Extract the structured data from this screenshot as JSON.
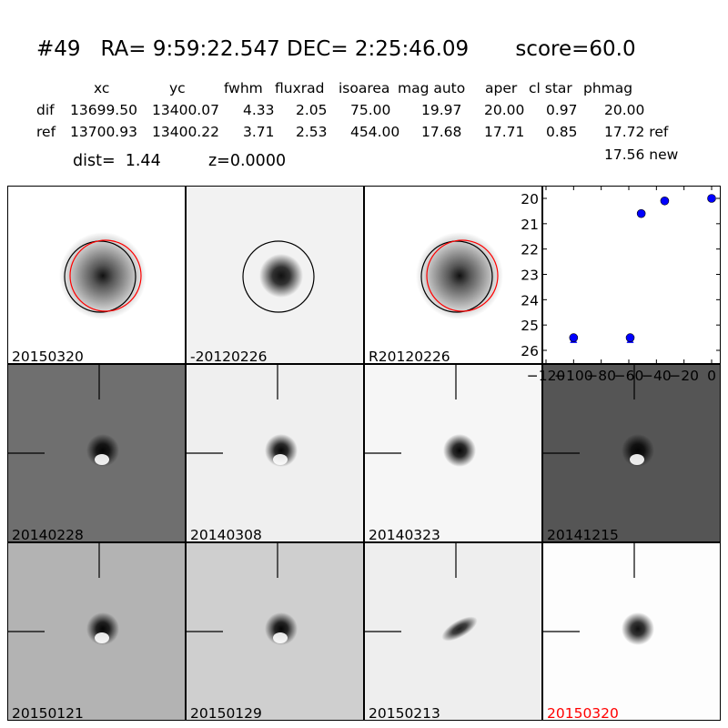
{
  "header": {
    "title": "#49   RA= 9:59:22.547 DEC= 2:25:46.09       score=60.0",
    "columns": [
      "xc",
      "yc",
      "fwhm",
      "fluxrad",
      "isoarea",
      "mag auto",
      "aper",
      "cl star",
      "phmag"
    ],
    "rows": [
      {
        "label": "dif",
        "values": [
          "13699.50",
          "13400.07",
          "4.33",
          "2.05",
          "75.00",
          "19.97",
          "20.00",
          "0.97",
          "20.00"
        ]
      },
      {
        "label": "ref",
        "values": [
          "13700.93",
          "13400.22",
          "3.71",
          "2.53",
          "454.00",
          "17.68",
          "17.71",
          "0.85",
          "17.72 ref"
        ]
      }
    ],
    "extra_phmag": "17.56 new",
    "dist": "dist=  1.44",
    "z": "z=0.0000"
  },
  "panels": [
    {
      "label": "20150320",
      "bg": "#ffffff",
      "blob": "#101010",
      "circles": true,
      "crosshair": false,
      "label_color": "#000000",
      "dipole": false
    },
    {
      "label": "-20120226",
      "bg": "#f2f2f2",
      "blob": "#101010",
      "circles": true,
      "crosshair": false,
      "label_color": "#000000",
      "dipole": false,
      "single_circle": true
    },
    {
      "label": "R20120226",
      "bg": "#ffffff",
      "blob": "#101010",
      "circles": true,
      "crosshair": false,
      "label_color": "#000000",
      "dipole": false
    },
    {
      "label": "20140228",
      "bg": "#6f6f6f",
      "blob": "#050505",
      "circles": false,
      "crosshair": true,
      "label_color": "#000000",
      "dipole": true
    },
    {
      "label": "20140308",
      "bg": "#efefef",
      "blob": "#050505",
      "circles": false,
      "crosshair": true,
      "label_color": "#000000",
      "dipole": true
    },
    {
      "label": "20140323",
      "bg": "#f6f6f6",
      "blob": "#050505",
      "circles": false,
      "crosshair": true,
      "label_color": "#000000",
      "dipole": false
    },
    {
      "label": "20141215",
      "bg": "#555555",
      "blob": "#050505",
      "circles": false,
      "crosshair": true,
      "label_color": "#000000",
      "dipole": true
    },
    {
      "label": "20150121",
      "bg": "#b3b3b3",
      "blob": "#050505",
      "circles": false,
      "crosshair": true,
      "label_color": "#000000",
      "dipole": true
    },
    {
      "label": "20150129",
      "bg": "#cfcfcf",
      "blob": "#050505",
      "circles": false,
      "crosshair": true,
      "label_color": "#000000",
      "dipole": true
    },
    {
      "label": "20150213",
      "bg": "#eeeeee",
      "blob": "#202020",
      "circles": false,
      "crosshair": true,
      "label_color": "#000000",
      "dipole": false,
      "elongated": true
    },
    {
      "label": "20150320",
      "bg": "#fdfdfd",
      "blob": "#101010",
      "circles": false,
      "crosshair": true,
      "label_color": "#ff0000",
      "dipole": false
    }
  ],
  "chart_data": {
    "type": "scatter",
    "x": [
      -100,
      -59,
      -51,
      -34,
      0
    ],
    "y": [
      25.5,
      25.5,
      20.6,
      20.1,
      20.0
    ],
    "triangles": [
      {
        "x": -100,
        "y": 25.6
      },
      {
        "x": -59,
        "y": 25.6
      }
    ],
    "xlim": [
      -120,
      0
    ],
    "ylim": [
      26,
      20
    ],
    "xticks": [
      "-120",
      "-100",
      "-80",
      "-60",
      "-40",
      "-20",
      "0"
    ],
    "yticks": [
      "20",
      "21",
      "22",
      "23",
      "24",
      "25",
      "26"
    ],
    "marker_color": "#0000ff"
  }
}
